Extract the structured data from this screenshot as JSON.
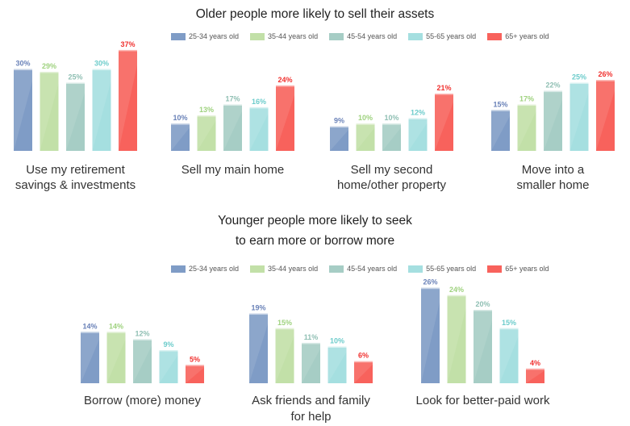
{
  "series_colors": [
    "#7f9cc6",
    "#c2e0a8",
    "#a6cdc5",
    "#a5dfe0",
    "#f8625c"
  ],
  "label_colors": [
    "#6a82b8",
    "#9fd27f",
    "#8fbfb3",
    "#6dcccb",
    "#f0302e"
  ],
  "chart_data": [
    {
      "type": "bar",
      "title": "Older people more likely to sell their assets",
      "legend": [
        "25-34 years old",
        "35-44 years old",
        "45-54 years old",
        "55-65 years old",
        "65+ years old"
      ],
      "legend_position": "top-center",
      "categories": [
        [
          "Use my retirement",
          "savings & investments"
        ],
        [
          "Sell my main home"
        ],
        [
          "Sell my second",
          "home/other property"
        ],
        [
          "Move into a",
          "smaller home"
        ]
      ],
      "series": [
        {
          "name": "25-34 years old",
          "values": [
            30,
            10,
            9,
            15
          ]
        },
        {
          "name": "35-44 years old",
          "values": [
            29,
            13,
            10,
            17
          ]
        },
        {
          "name": "45-54 years old",
          "values": [
            25,
            17,
            10,
            22
          ]
        },
        {
          "name": "55-65 years old",
          "values": [
            30,
            16,
            12,
            25
          ]
        },
        {
          "name": "65+ years old",
          "values": [
            37,
            24,
            21,
            26
          ]
        }
      ],
      "value_suffix": "%",
      "grid": false
    },
    {
      "type": "bar",
      "title": [
        "Younger people more likely to seek",
        "to earn more or borrow more"
      ],
      "legend": [
        "25-34 years old",
        "35-44 years old",
        "45-54 years old",
        "55-65 years old",
        "65+ years old"
      ],
      "legend_position": "top-center",
      "categories": [
        [
          "Borrow (more) money"
        ],
        [
          "Ask friends and family",
          "for help"
        ],
        [
          "Look for better-paid work"
        ]
      ],
      "series": [
        {
          "name": "25-34 years old",
          "values": [
            14,
            19,
            26
          ]
        },
        {
          "name": "35-44 years old",
          "values": [
            14,
            15,
            24
          ]
        },
        {
          "name": "45-54 years old",
          "values": [
            12,
            11,
            20
          ]
        },
        {
          "name": "55-65 years old",
          "values": [
            9,
            10,
            15
          ]
        },
        {
          "name": "65+ years old",
          "values": [
            5,
            6,
            4
          ]
        }
      ],
      "value_suffix": "%",
      "grid": false
    }
  ]
}
